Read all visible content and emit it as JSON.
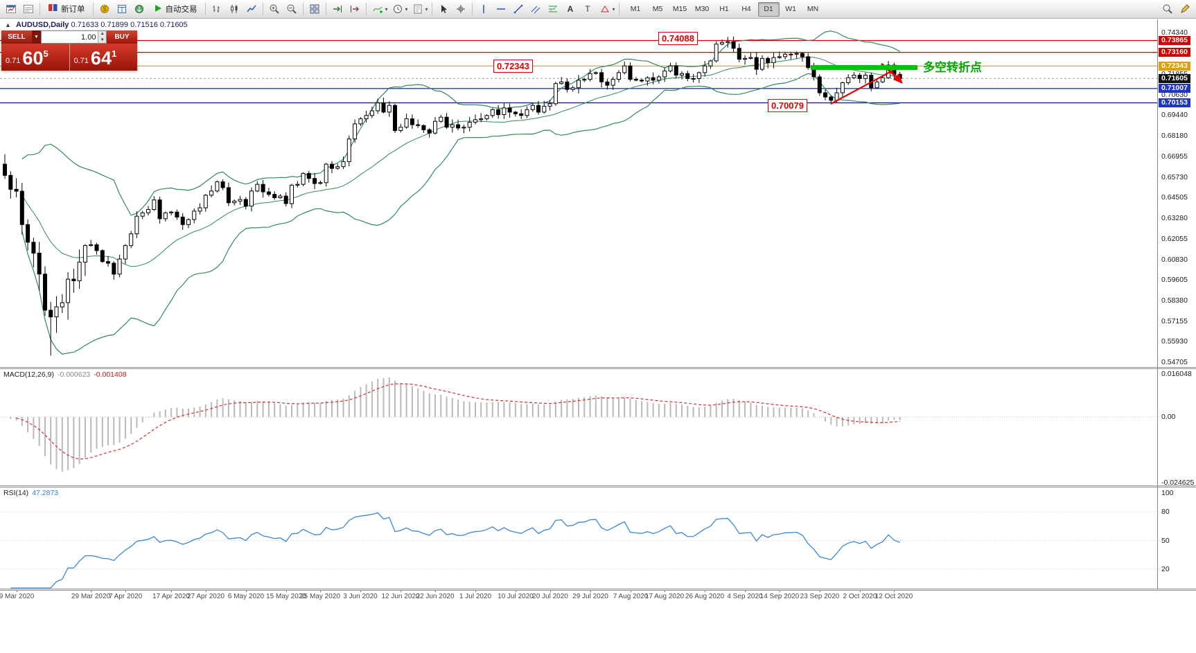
{
  "toolbar": {
    "new_order": "新订单",
    "autotrade": "自动交易",
    "timeframes": [
      "M1",
      "M5",
      "M15",
      "M30",
      "H1",
      "H4",
      "D1",
      "W1",
      "MN"
    ],
    "active_timeframe": "D1"
  },
  "chart_header": {
    "symbol": "AUDUSD,Daily",
    "ohlc": "0.71633 0.71899 0.71516 0.71605"
  },
  "trade_panel": {
    "sell_label": "SELL",
    "buy_label": "BUY",
    "volume": "1.00",
    "sell_price": {
      "prefix": "0.71",
      "big": "60",
      "sup": "5"
    },
    "buy_price": {
      "prefix": "0.71",
      "big": "64",
      "sup": "1"
    }
  },
  "price_scale": {
    "plain_ticks": [
      "0.74340",
      "0.71855",
      "0.70630",
      "0.69440",
      "0.68180",
      "0.66955",
      "0.65730",
      "0.64505",
      "0.63280",
      "0.62055",
      "0.60830",
      "0.59605",
      "0.58380",
      "0.57155",
      "0.55930",
      "0.54705"
    ],
    "tags": [
      {
        "value": "0.73865",
        "bg": "#d40000"
      },
      {
        "value": "0.73160",
        "bg": "#d40000"
      },
      {
        "value": "0.72343",
        "bg": "#e0a000"
      },
      {
        "value": "0.71605",
        "bg": "#111111"
      },
      {
        "value": "0.71007",
        "bg": "#1f35c4"
      },
      {
        "value": "0.70153",
        "bg": "#1f35c4"
      }
    ]
  },
  "annotations": {
    "peak": "0.74088",
    "level": "0.72343",
    "low": "0.70079",
    "turning_point": "多空转折点"
  },
  "macd_panel": {
    "label": "MACD(12,26,9)",
    "value_main": "-0.000623",
    "value_signal": "-0.001408",
    "scale_top": "0.016048",
    "scale_zero": "0.00",
    "scale_bottom": "-0.024625"
  },
  "rsi_panel": {
    "label": "RSI(14)",
    "value": "47.2873",
    "levels": [
      100,
      80,
      50,
      20
    ]
  },
  "date_axis": [
    {
      "label": "9 Mar 2020",
      "i": 2
    },
    {
      "label": "29 Mar 2020",
      "i": 15
    },
    {
      "label": "7 Apr 2020",
      "i": 21
    },
    {
      "label": "17 Apr 2020",
      "i": 29
    },
    {
      "label": "27 Apr 2020",
      "i": 35
    },
    {
      "label": "6 May 2020",
      "i": 42
    },
    {
      "label": "15 May 2020",
      "i": 49
    },
    {
      "label": "25 May 2020",
      "i": 55
    },
    {
      "label": "3 Jun 2020",
      "i": 62
    },
    {
      "label": "12 Jun 2020",
      "i": 69
    },
    {
      "label": "22 Jun 2020",
      "i": 75
    },
    {
      "label": "1 Jul 2020",
      "i": 82
    },
    {
      "label": "10 Jul 2020",
      "i": 89
    },
    {
      "label": "20 Jul 2020",
      "i": 95
    },
    {
      "label": "29 Jul 2020",
      "i": 102
    },
    {
      "label": "7 Aug 2020",
      "i": 109
    },
    {
      "label": "17 Aug 2020",
      "i": 115
    },
    {
      "label": "26 Aug 2020",
      "i": 122
    },
    {
      "label": "4 Sep 2020",
      "i": 129
    },
    {
      "label": "14 Sep 2020",
      "i": 135
    },
    {
      "label": "23 Sep 2020",
      "i": 142
    },
    {
      "label": "2 Oct 2020",
      "i": 149
    },
    {
      "label": "12 Oct 2020",
      "i": 155
    }
  ],
  "chart_data": {
    "type": "candlestick",
    "symbol": "AUDUSD",
    "timeframe": "Daily",
    "y_axis": {
      "top_price": 0.7434,
      "bottom_price": 0.54705
    },
    "current_price": 0.71605,
    "price_levels": [
      {
        "price": 0.73865,
        "color": "#d40000"
      },
      {
        "price": 0.7316,
        "color": "#d40000"
      },
      {
        "price": 0.72343,
        "color": "#e8a817"
      },
      {
        "price": 0.71007,
        "color": "#2236cc"
      },
      {
        "price": 0.70153,
        "color": "#10107a"
      }
    ],
    "bollinger_period": 20,
    "bollinger_dev": 2,
    "macd_range": {
      "max": 0.016048,
      "min": -0.024625
    },
    "colors": {
      "up": "#ffffff",
      "down": "#000000",
      "band": "#2e8b57",
      "rsi": "#3a86d8",
      "macd_hist": "#b9b9b9",
      "macd_signal": "#d62b2b",
      "trend_arrow": "#e60000",
      "green_bar": "#00c400"
    },
    "key_points": {
      "peak_price": 0.74088,
      "low_price": 0.70079
    },
    "closes": [
      0.6583,
      0.65,
      0.6489,
      0.629,
      0.6185,
      0.612,
      0.5995,
      0.578,
      0.574,
      0.58,
      0.5825,
      0.5965,
      0.5955,
      0.6066,
      0.6165,
      0.617,
      0.6135,
      0.607,
      0.606,
      0.5995,
      0.6085,
      0.6165,
      0.6235,
      0.634,
      0.636,
      0.638,
      0.6437,
      0.6325,
      0.636,
      0.6365,
      0.6335,
      0.629,
      0.632,
      0.637,
      0.639,
      0.6465,
      0.649,
      0.6545,
      0.651,
      0.642,
      0.643,
      0.644,
      0.64,
      0.649,
      0.653,
      0.6485,
      0.647,
      0.645,
      0.646,
      0.6415,
      0.6525,
      0.653,
      0.6595,
      0.6565,
      0.6535,
      0.654,
      0.665,
      0.6625,
      0.6635,
      0.6665,
      0.68,
      0.689,
      0.692,
      0.694,
      0.6968,
      0.7015,
      0.696,
      0.7,
      0.685,
      0.687,
      0.692,
      0.6885,
      0.688,
      0.6855,
      0.6835,
      0.6905,
      0.693,
      0.687,
      0.6885,
      0.6865,
      0.687,
      0.69,
      0.6915,
      0.692,
      0.694,
      0.6975,
      0.6945,
      0.6985,
      0.696,
      0.695,
      0.694,
      0.6975,
      0.7,
      0.696,
      0.6995,
      0.701,
      0.713,
      0.714,
      0.7095,
      0.7105,
      0.715,
      0.7155,
      0.719,
      0.7195,
      0.714,
      0.712,
      0.7155,
      0.7195,
      0.7235,
      0.7155,
      0.715,
      0.7145,
      0.7165,
      0.715,
      0.717,
      0.7205,
      0.7235,
      0.718,
      0.719,
      0.716,
      0.716,
      0.7195,
      0.7235,
      0.7265,
      0.7365,
      0.7375,
      0.738,
      0.734,
      0.7275,
      0.728,
      0.7285,
      0.7215,
      0.728,
      0.7255,
      0.7285,
      0.729,
      0.7305,
      0.7305,
      0.731,
      0.729,
      0.7225,
      0.717,
      0.7075,
      0.705,
      0.703,
      0.7075,
      0.7135,
      0.7165,
      0.718,
      0.716,
      0.718,
      0.7105,
      0.714,
      0.7165,
      0.724,
      0.7185,
      0.71605
    ]
  }
}
